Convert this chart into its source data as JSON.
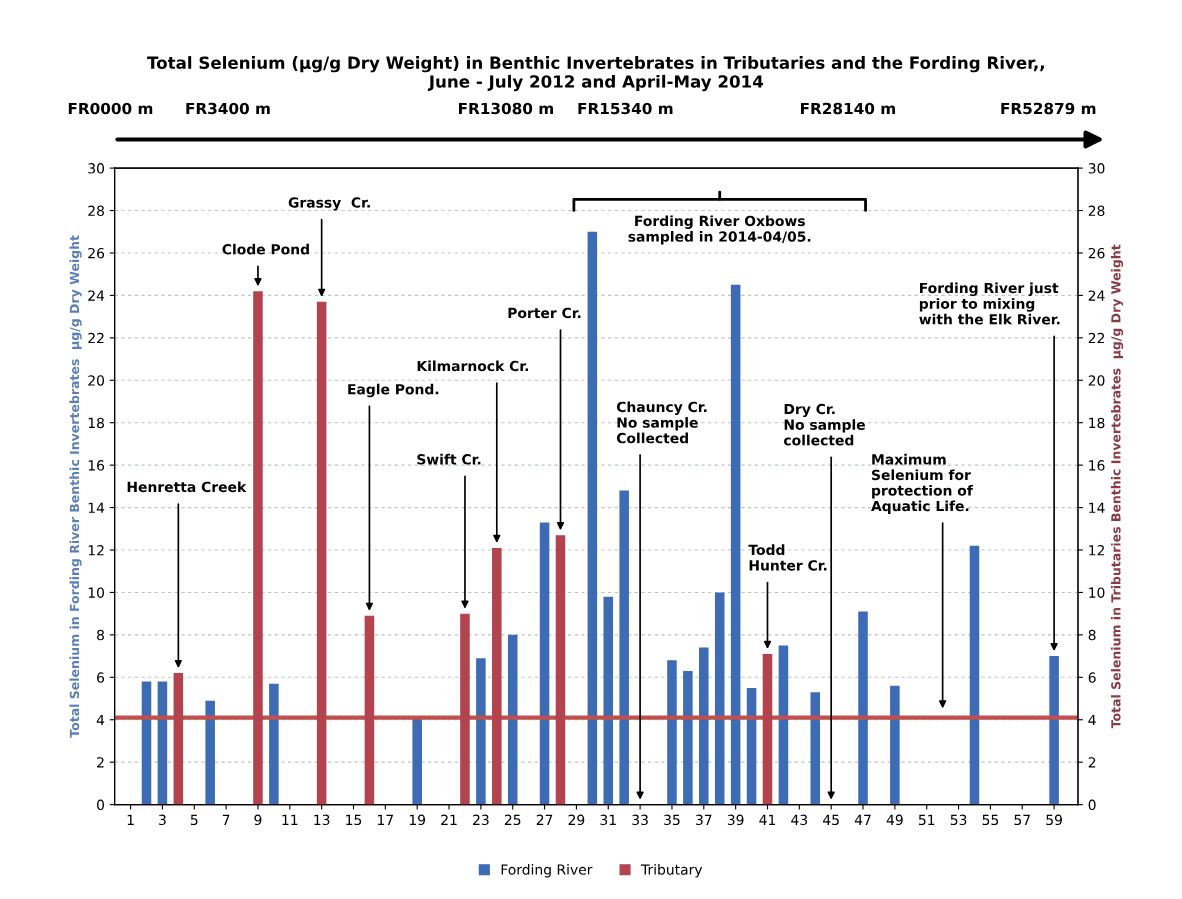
{
  "chart_data": {
    "type": "bar",
    "title": "Total Selenium (µg/g Dry Weight) in Benthic Invertebrates in Tributaries and the Fording River,,\nJune - July 2012 and April-May 2014",
    "ylabel": "Total Selenium in Fording River Benthic Invertebrates  µg/g Dry Weight",
    "y2label": "Total Selenium in Tributaries Benthic Invertebrates  µg/g Dry Weight",
    "xlim": [
      0,
      60.5
    ],
    "xticks": [
      1,
      3,
      5,
      7,
      9,
      11,
      13,
      15,
      17,
      19,
      21,
      23,
      25,
      27,
      29,
      31,
      33,
      35,
      37,
      39,
      41,
      43,
      45,
      47,
      49,
      51,
      53,
      55,
      57,
      59
    ],
    "ylim": [
      0,
      30
    ],
    "yticks": [
      0,
      2,
      4,
      6,
      8,
      10,
      12,
      14,
      16,
      18,
      20,
      22,
      24,
      26,
      28,
      30
    ],
    "y2lim": [
      0,
      30
    ],
    "y2ticks": [
      0,
      2,
      4,
      6,
      8,
      10,
      12,
      14,
      16,
      18,
      20,
      22,
      24,
      26,
      28,
      30
    ],
    "series": [
      {
        "name": "Fording River",
        "color": "#3d6cb5",
        "x": [
          2,
          3,
          6,
          10,
          19,
          23,
          25,
          27,
          30,
          31,
          32,
          35,
          36,
          37,
          38,
          39,
          40,
          42,
          44,
          47,
          49,
          54,
          59
        ],
        "values": [
          5.8,
          5.8,
          4.9,
          5.7,
          4.1,
          6.9,
          8.0,
          13.3,
          27.0,
          9.8,
          14.8,
          6.8,
          6.3,
          7.4,
          10.0,
          24.5,
          5.5,
          7.5,
          5.3,
          9.1,
          5.6,
          12.2,
          7.0
        ]
      },
      {
        "name": "Tributary",
        "color": "#b3434f",
        "axis": "y2",
        "x": [
          4,
          9,
          13,
          16,
          22,
          24,
          28,
          41
        ],
        "values": [
          6.2,
          24.2,
          23.7,
          8.9,
          9.0,
          12.1,
          12.7,
          7.1
        ]
      }
    ],
    "ref_lines": [
      {
        "axis": "y",
        "value": 4.1,
        "color": "#c0504d"
      }
    ],
    "grid": "y",
    "legend": "bottom",
    "annotations": [
      "FR0000 m",
      "FR3400 m",
      "FR13080 m",
      "FR15340 m",
      "FR28140 m",
      "FR52879 m",
      {
        "text": "Henretta Creek",
        "x": 4,
        "y": 6.2
      },
      {
        "text": "Clode Pond",
        "x": 9,
        "y": 24.2
      },
      {
        "text": "Grassy  Cr.",
        "x": 13,
        "y": 23.7
      },
      {
        "text": "Eagle Pond.",
        "x": 16,
        "y": 8.9
      },
      {
        "text": "Kilmarnock Cr.",
        "x": 24,
        "y": 12.1
      },
      {
        "text": "Swift Cr.",
        "x": 22,
        "y": 9.0
      },
      {
        "text": "Porter Cr.",
        "x": 28,
        "y": 12.7
      },
      "Chauncy Cr.\nNo sample\nCollected",
      "Dry Cr.\nNo sample\ncollected",
      {
        "text": "Todd\nHunter Cr.",
        "x": 41,
        "y": 7.1
      },
      "Maximum\nSelenium for\nprotection of\nAquatic Life.",
      {
        "text": "Fording River just\nprior to mixing\nwith the Elk River.",
        "x": 59,
        "y": 7.0
      },
      "Fording River Oxbows\nsampled in 2014-04/05."
    ]
  }
}
